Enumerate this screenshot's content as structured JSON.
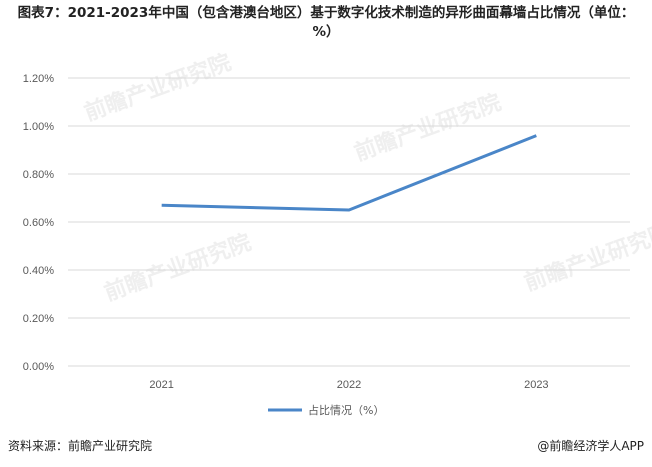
{
  "title": "图表7：2021-2023年中国（包含港澳台地区）基于数字化技术制造的异形曲面幕墙占比情况（单位：%）",
  "footer": {
    "source": "资料来源：前瞻产业研究院",
    "brand": "@前瞻经济学人APP"
  },
  "watermark": "前瞻产业研究院",
  "colors": {
    "series": "#4a86c8",
    "grid": "#d9d9d9"
  },
  "chart_data": {
    "type": "line",
    "categories": [
      "2021",
      "2022",
      "2023"
    ],
    "series": [
      {
        "name": "占比情况（%）",
        "values": [
          0.67,
          0.65,
          0.96
        ]
      }
    ],
    "yticks": [
      "0.00%",
      "0.20%",
      "0.40%",
      "0.60%",
      "0.80%",
      "1.00%",
      "1.20%"
    ],
    "ylim": [
      0,
      1.2
    ],
    "grid": true,
    "legend": "bottom-center"
  }
}
